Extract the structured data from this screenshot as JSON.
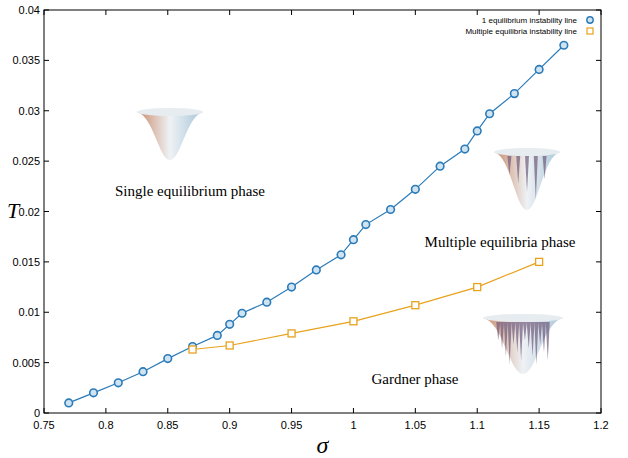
{
  "chart_data": {
    "type": "line",
    "x_label": "σ",
    "y_label": "T",
    "xlim": [
      0.75,
      1.2
    ],
    "ylim": [
      0,
      0.04
    ],
    "xticks": [
      0.75,
      0.8,
      0.85,
      0.9,
      0.95,
      1,
      1.05,
      1.1,
      1.15,
      1.2
    ],
    "yticks": [
      0,
      0.005,
      0.01,
      0.015,
      0.02,
      0.025,
      0.03,
      0.035,
      0.04
    ],
    "legend": "top-right",
    "grid": false,
    "annotations": [
      "Single equilibrium phase",
      "Multiple equilibria phase",
      "Gardner phase"
    ],
    "series": [
      {
        "name": "1 equilibrium instability line",
        "color": "#2b7bb9",
        "marker": "circle",
        "line_style": "solid",
        "x": [
          0.77,
          0.79,
          0.81,
          0.83,
          0.85,
          0.87,
          0.89,
          0.9,
          0.91,
          0.93,
          0.95,
          0.97,
          0.99,
          1.0,
          1.01,
          1.03,
          1.05,
          1.07,
          1.09,
          1.1,
          1.11,
          1.13,
          1.15,
          1.17
        ],
        "values": [
          0.001,
          0.002,
          0.003,
          0.0041,
          0.0054,
          0.0066,
          0.0077,
          0.0088,
          0.0099,
          0.011,
          0.0125,
          0.0142,
          0.0157,
          0.0172,
          0.0187,
          0.0202,
          0.0222,
          0.0245,
          0.0262,
          0.028,
          0.0297,
          0.0317,
          0.0341,
          0.0365
        ]
      },
      {
        "name": "Multiple equilibria instability line",
        "color": "#e8a21c",
        "marker": "square",
        "line_style": "solid",
        "x": [
          0.87,
          0.9,
          0.95,
          1.0,
          1.05,
          1.1,
          1.15
        ],
        "values": [
          0.0063,
          0.0067,
          0.0079,
          0.0091,
          0.0107,
          0.0125,
          0.015
        ]
      }
    ]
  }
}
